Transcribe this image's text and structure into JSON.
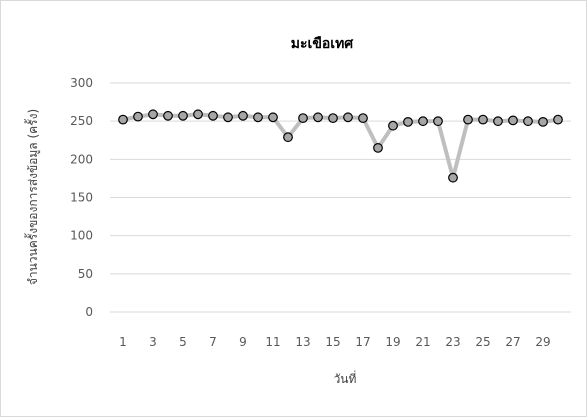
{
  "chart_data": {
    "type": "line",
    "title": "มะเขือเทศ",
    "xlabel": "วันที่",
    "ylabel": "จำนวนครั้งของการส่งข้อมูล (ครั้ง)",
    "x": [
      1,
      2,
      3,
      4,
      5,
      6,
      7,
      8,
      9,
      10,
      11,
      12,
      13,
      14,
      15,
      16,
      17,
      18,
      19,
      20,
      21,
      22,
      23,
      24,
      25,
      26,
      27,
      28,
      29,
      30
    ],
    "x_tick_labels": [
      "1",
      "3",
      "5",
      "7",
      "9",
      "11",
      "13",
      "15",
      "17",
      "19",
      "21",
      "23",
      "25",
      "27",
      "29"
    ],
    "y_tick_labels": [
      "0",
      "50",
      "100",
      "150",
      "200",
      "250",
      "300"
    ],
    "ylim": [
      0,
      300
    ],
    "yticks": [
      0,
      50,
      100,
      150,
      200,
      250,
      300
    ],
    "grid": "horizontal",
    "legend": "none",
    "series": [
      {
        "values": [
          252,
          256,
          259,
          257,
          257,
          259,
          257,
          255,
          257,
          255,
          255,
          229,
          254,
          255,
          254,
          255,
          254,
          215,
          244,
          249,
          250,
          250,
          176,
          252,
          252,
          250,
          251,
          250,
          249,
          252
        ],
        "line_color": "#bfbfbf",
        "marker_fill": "#a6a6a6",
        "marker_edge": "#000000"
      }
    ]
  }
}
